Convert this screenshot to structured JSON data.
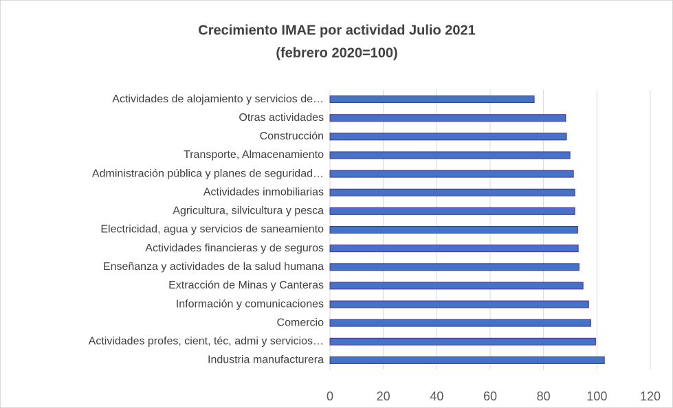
{
  "chart_data": {
    "type": "bar",
    "orientation": "horizontal",
    "title": "Crecimiento IMAE por actividad Julio 2021",
    "subtitle": "(febrero 2020=100)",
    "categories": [
      "Actividades de alojamiento y servicios de…",
      "Otras actividades",
      "Construcción",
      "Transporte, Almacenamiento",
      "Administración pública y planes de seguridad…",
      "Actividades inmobiliarias",
      "Agricultura, silvicultura y pesca",
      "Electricidad, agua y servicios de saneamiento",
      "Actividades financieras y de seguros",
      "Enseñanza y actividades de la salud humana",
      "Extracción de Minas y Canteras",
      "Información y comunicaciones",
      "Comercio",
      "Actividades profes, cient, téc, admi y servicios…",
      "Industria manufacturera"
    ],
    "values": [
      76.5,
      88.3,
      88.6,
      89.9,
      91.2,
      91.7,
      91.7,
      92.8,
      93.0,
      93.3,
      94.8,
      96.9,
      97.7,
      99.5,
      102.8
    ],
    "color": "#4472c4",
    "xlim": [
      0,
      120
    ],
    "xticks": [
      0,
      20,
      40,
      60,
      80,
      100,
      120
    ],
    "grid": true
  }
}
